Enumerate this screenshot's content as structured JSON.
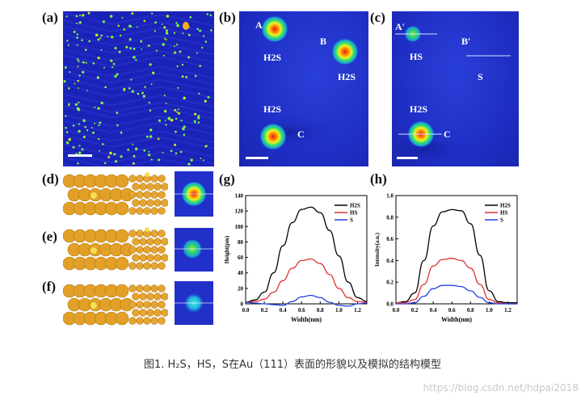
{
  "panels": {
    "a": {
      "label": "(a)"
    },
    "b": {
      "label": "(b)",
      "spots": [
        "A",
        "B",
        "C"
      ],
      "species": [
        "H2S",
        "H2S",
        "H2S"
      ]
    },
    "c": {
      "label": "(c)",
      "spots": [
        "A′",
        "B′",
        "C"
      ],
      "species": [
        "HS",
        "S",
        "H2S"
      ]
    },
    "d": {
      "label": "(d)"
    },
    "e": {
      "label": "(e)"
    },
    "f": {
      "label": "(f)"
    },
    "g": {
      "label": "(g)"
    },
    "h": {
      "label": "(h)"
    }
  },
  "chart_data": [
    {
      "type": "line",
      "panel": "g",
      "xlabel": "Width(nm)",
      "ylabel": "Height(pm)",
      "xlim": [
        0,
        1.3
      ],
      "ylim": [
        0,
        140
      ],
      "xticks": [
        0.0,
        0.2,
        0.4,
        0.6,
        0.8,
        1.0,
        1.2
      ],
      "yticks": [
        0,
        20,
        40,
        60,
        80,
        100,
        120,
        140
      ],
      "legend_position": "top-right",
      "series": [
        {
          "name": "H2S",
          "color": "#000000",
          "x": [
            0.0,
            0.1,
            0.2,
            0.3,
            0.4,
            0.5,
            0.6,
            0.7,
            0.8,
            0.9,
            1.0,
            1.1,
            1.2,
            1.3
          ],
          "y": [
            2,
            5,
            15,
            40,
            75,
            105,
            122,
            125,
            118,
            95,
            62,
            28,
            8,
            3
          ]
        },
        {
          "name": "HS",
          "color": "#e03030",
          "x": [
            0.0,
            0.1,
            0.2,
            0.3,
            0.4,
            0.5,
            0.6,
            0.7,
            0.8,
            0.9,
            1.0,
            1.1,
            1.2,
            1.3
          ],
          "y": [
            2,
            3,
            6,
            15,
            30,
            46,
            56,
            58,
            52,
            38,
            20,
            8,
            3,
            2
          ]
        },
        {
          "name": "S",
          "color": "#2040e0",
          "x": [
            0.0,
            0.1,
            0.2,
            0.3,
            0.4,
            0.5,
            0.6,
            0.7,
            0.8,
            0.9,
            1.0,
            1.1,
            1.2,
            1.3
          ],
          "y": [
            2,
            1,
            0,
            -1,
            -2,
            3,
            9,
            11,
            8,
            2,
            -2,
            -3,
            0,
            1
          ]
        }
      ]
    },
    {
      "type": "line",
      "panel": "h",
      "xlabel": "Width(nm)",
      "ylabel": "Intensity(a.u.)",
      "xlim": [
        0,
        1.3
      ],
      "ylim": [
        0,
        1.0
      ],
      "xticks": [
        0.0,
        0.2,
        0.4,
        0.6,
        0.8,
        1.0,
        1.2
      ],
      "yticks": [
        0.0,
        0.2,
        0.4,
        0.6,
        0.8,
        1.0
      ],
      "legend_position": "top-right",
      "series": [
        {
          "name": "H2S",
          "color": "#000000",
          "x": [
            0.0,
            0.1,
            0.2,
            0.3,
            0.4,
            0.5,
            0.6,
            0.7,
            0.8,
            0.9,
            1.0,
            1.1,
            1.2,
            1.3
          ],
          "y": [
            0.01,
            0.02,
            0.1,
            0.4,
            0.72,
            0.85,
            0.87,
            0.86,
            0.74,
            0.45,
            0.12,
            0.02,
            0.01,
            0.01
          ]
        },
        {
          "name": "HS",
          "color": "#e03030",
          "x": [
            0.0,
            0.1,
            0.2,
            0.3,
            0.4,
            0.5,
            0.6,
            0.7,
            0.8,
            0.9,
            1.0,
            1.1,
            1.2,
            1.3
          ],
          "y": [
            0.01,
            0.01,
            0.04,
            0.18,
            0.35,
            0.41,
            0.42,
            0.4,
            0.33,
            0.18,
            0.04,
            0.01,
            0.0,
            0.0
          ]
        },
        {
          "name": "S",
          "color": "#2040e0",
          "x": [
            0.0,
            0.1,
            0.2,
            0.3,
            0.4,
            0.5,
            0.6,
            0.7,
            0.8,
            0.9,
            1.0,
            1.1,
            1.2,
            1.3
          ],
          "y": [
            0.0,
            0.0,
            0.01,
            0.07,
            0.14,
            0.17,
            0.17,
            0.16,
            0.12,
            0.06,
            0.01,
            0.0,
            0.0,
            0.0
          ]
        }
      ]
    }
  ],
  "caption": "图1. H₂S，HS，S在Au（111）表面的形貌以及模拟的结构模型",
  "watermark": "https://blog.csdn.net/hdpai2018"
}
